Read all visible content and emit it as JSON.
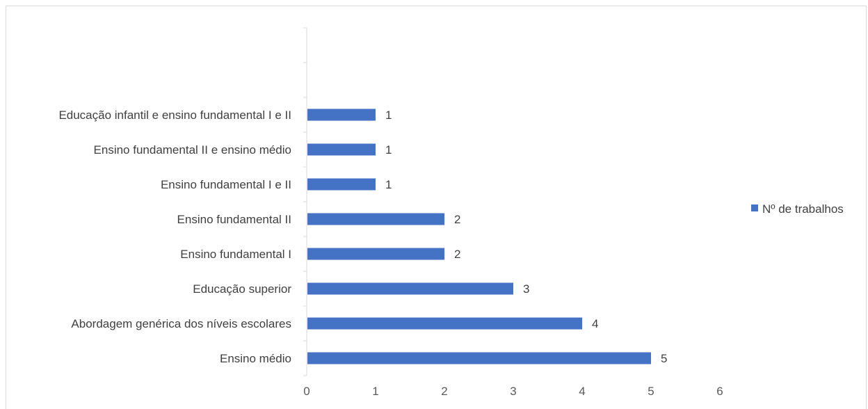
{
  "chart_data": {
    "type": "bar",
    "orientation": "horizontal",
    "categories": [
      "Ensino médio",
      "Abordagem genérica dos níveis escolares",
      "Educação superior",
      "Ensino fundamental I",
      "Ensino fundamental II",
      "Ensino fundamental I e II",
      "Ensino fundamental II e ensino médio",
      "Educação infantil e ensino fundamental I e II"
    ],
    "series": [
      {
        "name": "Nº de trabalhos",
        "values": [
          5,
          4,
          3,
          2,
          2,
          1,
          1,
          1
        ],
        "color": "#4472c4"
      }
    ],
    "xlim": [
      0,
      6
    ],
    "xticks": [
      "0",
      "1",
      "2",
      "3",
      "4",
      "5",
      "6"
    ],
    "category_slots": 10,
    "data_labels": true,
    "grid": false,
    "legend": "right"
  }
}
